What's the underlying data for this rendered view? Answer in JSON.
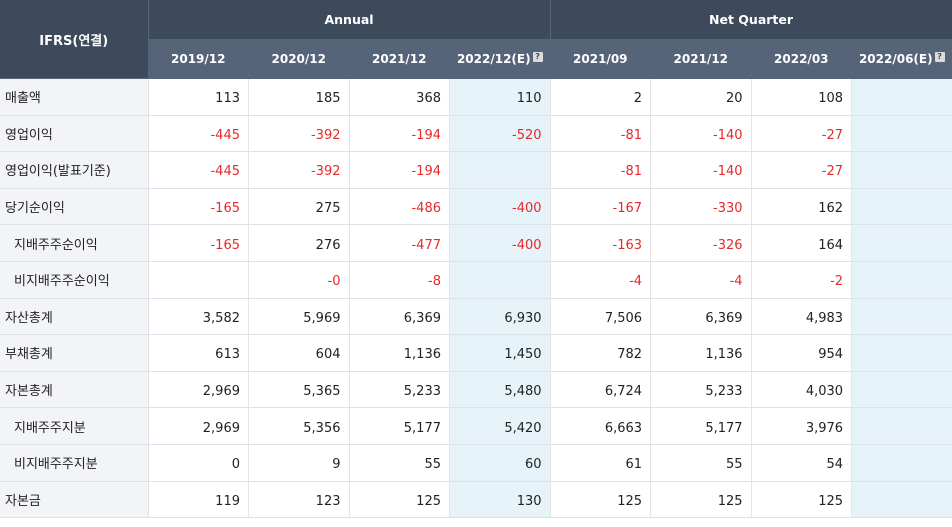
{
  "header": {
    "corner_label": "IFRS(연결)",
    "groups": [
      {
        "label": "Annual"
      },
      {
        "label": "Net Quarter"
      }
    ],
    "columns": [
      {
        "label": "2019/12",
        "estimate": false
      },
      {
        "label": "2020/12",
        "estimate": false
      },
      {
        "label": "2021/12",
        "estimate": false
      },
      {
        "label": "2022/12(E)",
        "estimate": true
      },
      {
        "label": "2021/09",
        "estimate": false
      },
      {
        "label": "2021/12",
        "estimate": false
      },
      {
        "label": "2022/03",
        "estimate": false
      },
      {
        "label": "2022/06(E)",
        "estimate": true
      }
    ],
    "help_icon": "?"
  },
  "rows": [
    {
      "label": "매출액",
      "sub": false,
      "values": [
        "113",
        "185",
        "368",
        "110",
        "2",
        "20",
        "108",
        ""
      ]
    },
    {
      "label": "영업이익",
      "sub": false,
      "values": [
        "-445",
        "-392",
        "-194",
        "-520",
        "-81",
        "-140",
        "-27",
        ""
      ]
    },
    {
      "label": "영업이익(발표기준)",
      "sub": false,
      "values": [
        "-445",
        "-392",
        "-194",
        "",
        "-81",
        "-140",
        "-27",
        ""
      ]
    },
    {
      "label": "당기순이익",
      "sub": false,
      "values": [
        "-165",
        "275",
        "-486",
        "-400",
        "-167",
        "-330",
        "162",
        ""
      ]
    },
    {
      "label": "지배주주순이익",
      "sub": true,
      "values": [
        "-165",
        "276",
        "-477",
        "-400",
        "-163",
        "-326",
        "164",
        ""
      ]
    },
    {
      "label": "비지배주주순이익",
      "sub": true,
      "values": [
        "",
        "-0",
        "-8",
        "",
        "-4",
        "-4",
        "-2",
        ""
      ]
    },
    {
      "label": "자산총계",
      "sub": false,
      "values": [
        "3,582",
        "5,969",
        "6,369",
        "6,930",
        "7,506",
        "6,369",
        "4,983",
        ""
      ]
    },
    {
      "label": "부채총계",
      "sub": false,
      "values": [
        "613",
        "604",
        "1,136",
        "1,450",
        "782",
        "1,136",
        "954",
        ""
      ]
    },
    {
      "label": "자본총계",
      "sub": false,
      "values": [
        "2,969",
        "5,365",
        "5,233",
        "5,480",
        "6,724",
        "5,233",
        "4,030",
        ""
      ]
    },
    {
      "label": "지배주주지분",
      "sub": true,
      "values": [
        "2,969",
        "5,356",
        "5,177",
        "5,420",
        "6,663",
        "5,177",
        "3,976",
        ""
      ]
    },
    {
      "label": "비지배주주지분",
      "sub": true,
      "values": [
        "0",
        "9",
        "55",
        "60",
        "61",
        "55",
        "54",
        ""
      ]
    },
    {
      "label": "자본금",
      "sub": false,
      "values": [
        "119",
        "123",
        "125",
        "130",
        "125",
        "125",
        "125",
        ""
      ]
    }
  ],
  "colors": {
    "header_dark": "#3d4a5c",
    "header_light": "#56647a",
    "estimate_bg": "#e6f3f9",
    "negative": "#e62a2a",
    "label_bg": "#f2f4f7"
  }
}
